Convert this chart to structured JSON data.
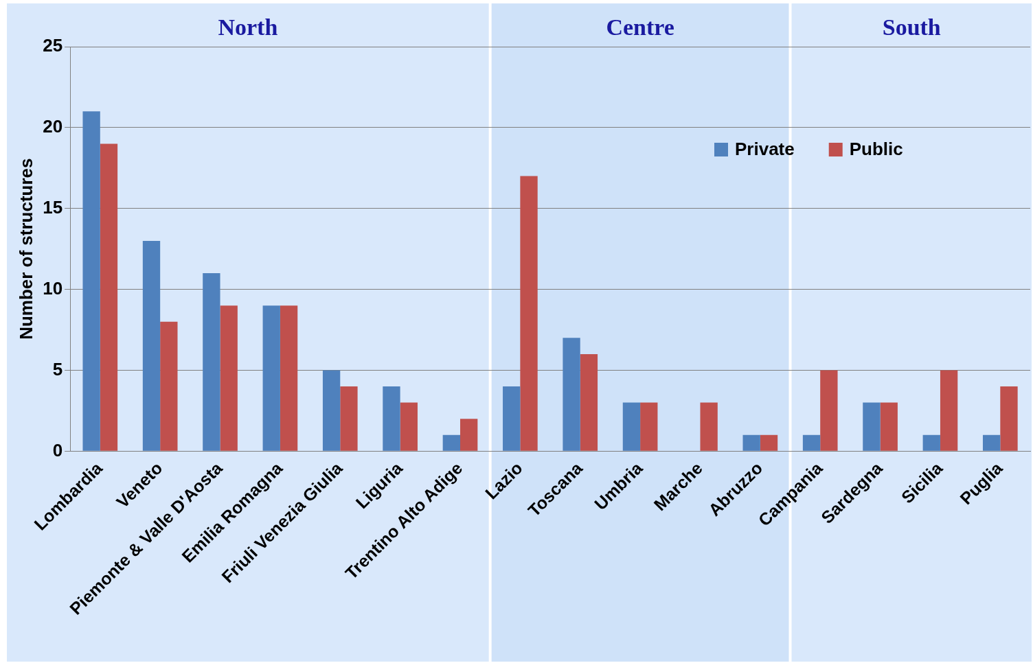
{
  "chart_data": {
    "type": "bar",
    "ylabel": "Number of structures",
    "categories": [
      "Lombardia",
      "Veneto",
      "Piemonte & Valle D'Aosta",
      "Emilia Romagna",
      "Friuli Venezia Giulia",
      "Liguria",
      "Trentino Alto Adige",
      "Lazio",
      "Toscana",
      "Umbria",
      "Marche",
      "Abruzzo",
      "Campania",
      "Sardegna",
      "Sicilia",
      "Puglia"
    ],
    "series": [
      {
        "name": "Private",
        "color": "#4f81bd",
        "values": [
          21,
          13,
          11,
          9,
          5,
          4,
          1,
          4,
          7,
          3,
          0,
          1,
          1,
          3,
          1,
          1
        ]
      },
      {
        "name": "Public",
        "color": "#c0504d",
        "values": [
          19,
          8,
          9,
          9,
          4,
          3,
          2,
          17,
          6,
          3,
          3,
          1,
          5,
          3,
          5,
          4
        ]
      }
    ],
    "ylim": [
      0,
      25
    ],
    "yticks": [
      0,
      5,
      10,
      15,
      20,
      25
    ],
    "grid": "y",
    "legend": "top right",
    "bands": [
      {
        "axis": "x",
        "from": "Lombardia",
        "to": "Trentino Alto Adige",
        "label": "North",
        "color": "#d9e8fb"
      },
      {
        "axis": "x",
        "from": "Lazio",
        "to": "Abruzzo",
        "label": "Centre",
        "color": "#cfe2f9"
      },
      {
        "axis": "x",
        "from": "Campania",
        "to": "Puglia",
        "label": "South",
        "color": "#d9e8fb"
      }
    ]
  }
}
